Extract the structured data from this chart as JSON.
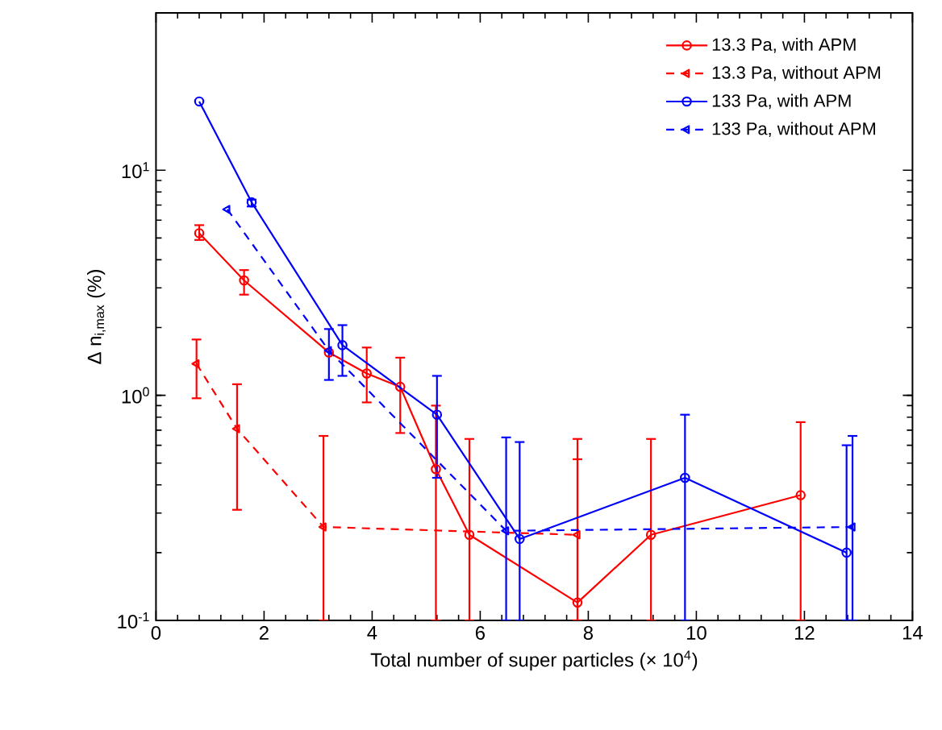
{
  "chart_data": {
    "type": "line",
    "xlabel": "Total number of super particles (× 10$^{4}$)",
    "ylabel": "Δ n$_{i,max}$ (%)",
    "xlim": [
      0,
      14
    ],
    "xticks": [
      0,
      2,
      4,
      6,
      8,
      10,
      12,
      14
    ],
    "ylim": [
      0.1,
      50
    ],
    "yticks": [
      {
        "value": 0.1,
        "label": "10$^{-1}$"
      },
      {
        "value": 1,
        "label": "10$^{0}$"
      },
      {
        "value": 10,
        "label": "10$^{1}$"
      }
    ],
    "log": "y",
    "legend": "top right",
    "series": [
      {
        "name": "13.3 Pa, with APM",
        "color": "#ff0000",
        "marker": "circle",
        "line_style": "solid",
        "x": [
          0.8,
          1.63,
          3.2,
          3.9,
          4.52,
          5.18,
          5.8,
          7.8,
          9.16,
          11.93
        ],
        "values": [
          5.25,
          3.24,
          1.55,
          1.25,
          1.09,
          0.47,
          0.24,
          0.12,
          0.24,
          0.36
        ],
        "errors": [
          [
            4.9,
            5.7
          ],
          [
            2.8,
            3.6
          ],
          null,
          [
            0.93,
            1.63
          ],
          [
            0.68,
            1.47
          ],
          [
            0.1,
            0.9
          ],
          [
            0.1,
            0.64
          ],
          [
            0.1,
            0.64
          ],
          [
            0.1,
            0.64
          ],
          [
            0.1,
            0.76
          ]
        ]
      },
      {
        "name": "13.3 Pa, without APM",
        "color": "#ff0000",
        "marker": "triangle",
        "line_style": "dashed",
        "x": [
          0.75,
          1.5,
          3.1,
          7.8
        ],
        "values": [
          1.38,
          0.71,
          0.26,
          0.24
        ],
        "errors": [
          [
            0.97,
            1.77
          ],
          [
            0.31,
            1.12
          ],
          [
            0.1,
            0.66
          ],
          [
            0.1,
            0.52
          ]
        ]
      },
      {
        "name": "133 Pa, with APM",
        "color": "#0000ff",
        "marker": "circle",
        "line_style": "solid",
        "x": [
          0.8,
          1.77,
          3.45,
          5.2,
          6.73,
          9.79,
          12.78
        ],
        "values": [
          20.2,
          7.2,
          1.67,
          0.82,
          0.23,
          0.43,
          0.2
        ],
        "errors": [
          null,
          [
            6.9,
            7.4
          ],
          [
            1.22,
            2.05
          ],
          [
            0.43,
            1.22
          ],
          [
            0.1,
            0.62
          ],
          [
            0.1,
            0.82
          ],
          [
            0.1,
            0.6
          ]
        ]
      },
      {
        "name": "133 Pa, without APM",
        "color": "#0000ff",
        "marker": "triangle",
        "line_style": "dashed",
        "x": [
          1.32,
          3.2,
          6.48,
          12.89
        ],
        "values": [
          6.7,
          1.58,
          0.25,
          0.26
        ],
        "errors": [
          null,
          [
            1.17,
            1.97
          ],
          [
            0.1,
            0.65
          ],
          [
            0.1,
            0.66
          ]
        ]
      }
    ]
  }
}
